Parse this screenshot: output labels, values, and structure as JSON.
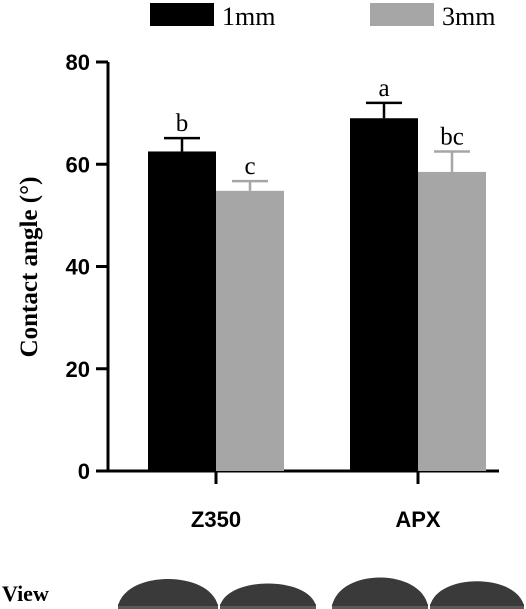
{
  "chart_data": {
    "type": "bar",
    "categories": [
      "Z350",
      "APX"
    ],
    "series": [
      {
        "name": "1mm",
        "color": "#000000",
        "values": [
          62.5,
          69.0
        ],
        "errors": [
          2.6,
          3.0
        ],
        "labels": [
          "b",
          "a"
        ]
      },
      {
        "name": "3mm",
        "color": "#a6a6a6",
        "values": [
          54.8,
          58.5
        ],
        "errors": [
          1.9,
          4.0
        ],
        "labels": [
          "c",
          "bc"
        ]
      }
    ],
    "ylabel": "Contact angle (°)",
    "ylim": [
      0,
      80
    ],
    "yticks": [
      "0",
      "20",
      "40",
      "60",
      "80"
    ],
    "legend_position": "top"
  },
  "view": {
    "label": "View",
    "droplet_color": "#3a3a3a"
  }
}
